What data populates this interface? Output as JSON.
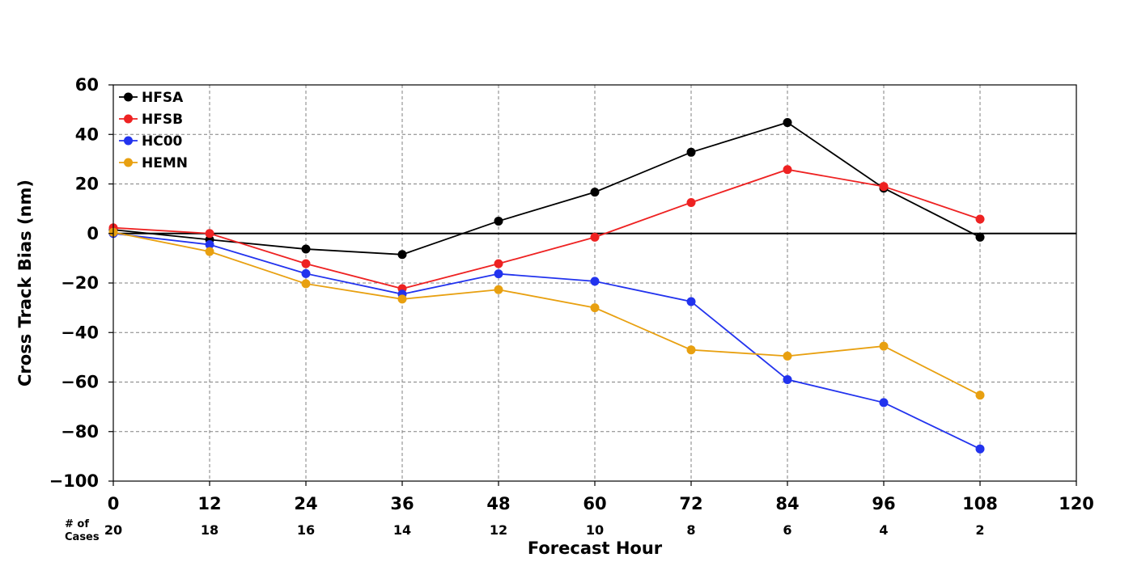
{
  "chart_data": {
    "type": "line",
    "xlabel": "Forecast Hour",
    "ylabel": "Cross Track Bias (nm)",
    "xlim": [
      0,
      120
    ],
    "ylim": [
      -100,
      60
    ],
    "x_ticks": [
      0,
      12,
      24,
      36,
      48,
      60,
      72,
      84,
      96,
      108,
      120
    ],
    "x_tick_labels": [
      "0",
      "12",
      "24",
      "36",
      "48",
      "60",
      "72",
      "84",
      "96",
      "108",
      "120"
    ],
    "y_ticks": [
      60,
      40,
      20,
      0,
      -20,
      -40,
      -60,
      -80,
      -100
    ],
    "y_tick_labels": [
      "60",
      "40",
      "20",
      "0",
      "−20",
      "−40",
      "−60",
      "−80",
      "−100"
    ],
    "grid": true,
    "legend_position": "top-left",
    "zero_line": true,
    "x": [
      0,
      12,
      24,
      36,
      48,
      60,
      72,
      84,
      96,
      108
    ],
    "series": [
      {
        "name": "HFSA",
        "color": "#000000",
        "values": [
          1.5,
          -2.5,
          -6.3,
          -8.5,
          5,
          16.7,
          32.8,
          44.8,
          18.3,
          -1.5
        ]
      },
      {
        "name": "HFSB",
        "color": "#ee2222",
        "values": [
          2.3,
          0,
          -12.2,
          -22.3,
          -12.2,
          -1.5,
          12.5,
          25.8,
          19,
          5.8
        ]
      },
      {
        "name": "HC00",
        "color": "#2233ee",
        "values": [
          0,
          -4.5,
          -16.2,
          -24.5,
          -16.3,
          -19.3,
          -27.5,
          -59,
          -68.3,
          -87
        ]
      },
      {
        "name": "HEMN",
        "color": "#e8a010",
        "values": [
          0.5,
          -7.3,
          -20.3,
          -26.5,
          -22.7,
          -30,
          -47,
          -49.5,
          -45.5,
          -65.3
        ]
      }
    ],
    "cases_label_line1": "# of",
    "cases_label_line2": "Cases",
    "cases": [
      "20",
      "18",
      "16",
      "14",
      "12",
      "10",
      "8",
      "6",
      "4",
      "2"
    ]
  }
}
